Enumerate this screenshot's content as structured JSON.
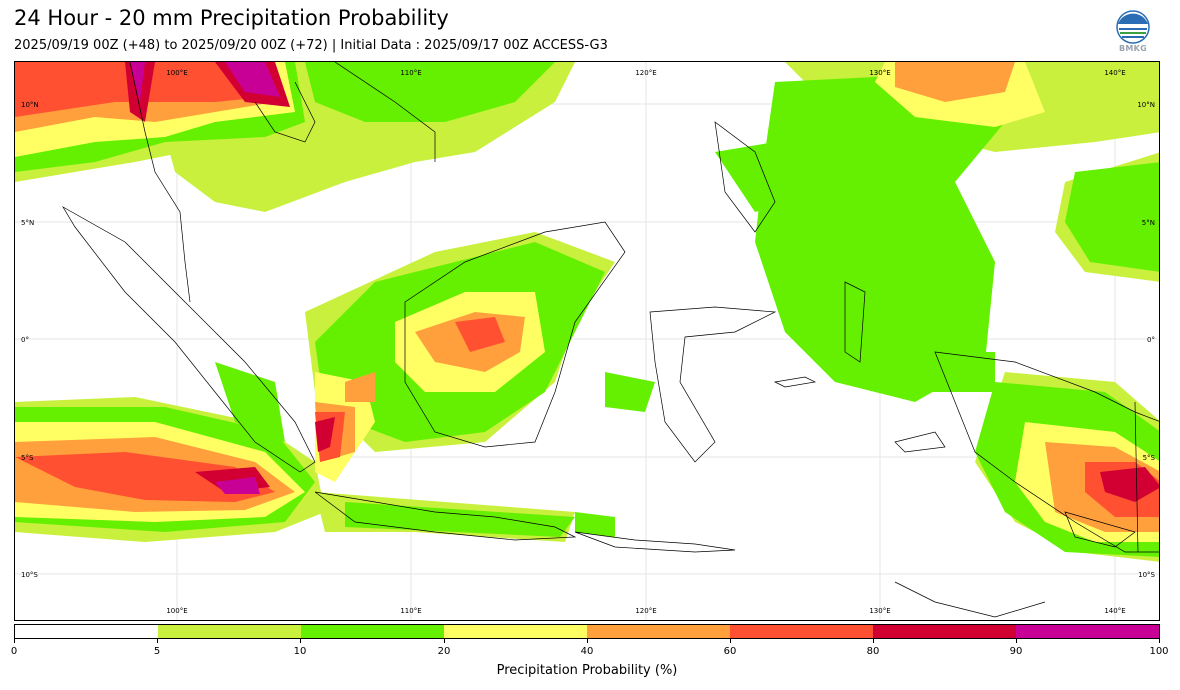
{
  "title": "24 Hour - 20 mm Precipitation Probability",
  "subtitle": "2025/09/19 00Z (+48) to 2025/09/20 00Z (+72) | Initial Data : 2025/09/17 00Z ACCESS-G3",
  "logo": {
    "text": "BMKG",
    "icon": "bmkg-logo-icon"
  },
  "map": {
    "lon_labels_top": [
      "100°E",
      "110°E",
      "120°E",
      "130°E",
      "140°E"
    ],
    "lon_labels_bottom": [
      "100°E",
      "110°E",
      "120°E",
      "130°E",
      "140°E"
    ],
    "lat_labels_left": [
      "10°N",
      "5°N",
      "0°",
      "5°S",
      "10°S"
    ],
    "lat_labels_right": [
      "10°N",
      "5°N",
      "0°",
      "5°S",
      "10°S"
    ]
  },
  "colorbar": {
    "label": "Precipitation Probability (%)",
    "ticks": [
      "0",
      "5",
      "10",
      "20",
      "40",
      "60",
      "80",
      "90",
      "100"
    ],
    "colors": [
      "#ffffff",
      "#c8f03c",
      "#64f000",
      "#ffff64",
      "#ffa03c",
      "#ff5032",
      "#d20032",
      "#c80096"
    ]
  }
}
